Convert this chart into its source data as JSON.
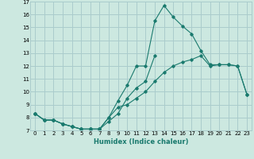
{
  "xlabel": "Humidex (Indice chaleur)",
  "xlim": [
    -0.5,
    23.5
  ],
  "ylim": [
    7,
    17
  ],
  "xticks": [
    0,
    1,
    2,
    3,
    4,
    5,
    6,
    7,
    8,
    9,
    10,
    11,
    12,
    13,
    14,
    15,
    16,
    17,
    18,
    19,
    20,
    21,
    22,
    23
  ],
  "yticks": [
    7,
    8,
    9,
    10,
    11,
    12,
    13,
    14,
    15,
    16,
    17
  ],
  "bg_color": "#cce8e0",
  "grid_color": "#aacccc",
  "line_color": "#1a7a6e",
  "series": [
    [
      8.3,
      7.8,
      7.8,
      7.5,
      7.3,
      7.1,
      7.1,
      7.1,
      8.0,
      9.3,
      10.5,
      12.0,
      12.0,
      15.5,
      16.7,
      15.8,
      15.1,
      14.5,
      13.2,
      12.1,
      12.1,
      12.1,
      12.0,
      9.8
    ],
    [
      8.3,
      7.8,
      7.8,
      7.5,
      7.3,
      7.1,
      7.1,
      7.1,
      7.7,
      8.3,
      9.5,
      10.3,
      10.8,
      12.8,
      null,
      null,
      null,
      null,
      null,
      null,
      null,
      null,
      null,
      null
    ],
    [
      8.3,
      7.8,
      7.8,
      7.5,
      7.3,
      7.1,
      7.1,
      7.1,
      8.0,
      8.8,
      9.0,
      9.5,
      10.0,
      10.8,
      11.5,
      12.0,
      12.3,
      12.5,
      12.8,
      12.0,
      12.1,
      12.1,
      12.0,
      9.8
    ]
  ]
}
